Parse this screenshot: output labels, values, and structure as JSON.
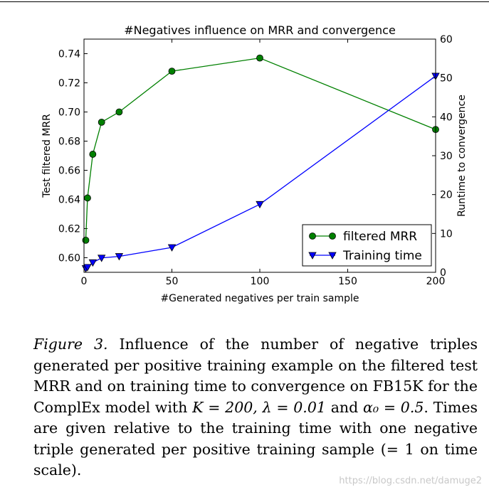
{
  "chart_data": {
    "type": "line",
    "title": "#Negatives influence on MRR and convergence",
    "xlabel": "#Generated negatives per train sample",
    "ylabel_left": "Test filtered MRR",
    "ylabel_right": "Runtime to convergence",
    "xlim": [
      0,
      200
    ],
    "ylim_left": [
      0.59,
      0.75
    ],
    "ylim_right": [
      0,
      60
    ],
    "x_ticks": [
      0,
      50,
      100,
      150,
      200
    ],
    "y_ticks_left": [
      0.6,
      0.62,
      0.64,
      0.66,
      0.68,
      0.7,
      0.72,
      0.74
    ],
    "y_ticks_right": [
      0,
      10,
      20,
      30,
      40,
      50,
      60
    ],
    "legend_position": "lower-right",
    "series": [
      {
        "name": "filtered MRR",
        "axis": "left",
        "color": "#008000",
        "marker": "circle",
        "x": [
          1,
          2,
          5,
          10,
          20,
          50,
          100,
          200
        ],
        "y": [
          0.612,
          0.641,
          0.671,
          0.693,
          0.7,
          0.728,
          0.737,
          0.688
        ]
      },
      {
        "name": "Training time",
        "axis": "right",
        "color": "#0000ff",
        "marker": "triangle-down",
        "x": [
          1,
          2,
          5,
          10,
          20,
          50,
          100,
          200
        ],
        "y": [
          1,
          1.3,
          2.5,
          3.7,
          4.1,
          6.4,
          17.5,
          50.5
        ]
      }
    ]
  },
  "caption": {
    "label": "Figure 3.",
    "text_1": " Influence of the number of negative triples generated per positive training example on the filtered test MRR and on training time to convergence on FB15K for the ComplEx model with ",
    "math": "K = 200, λ = 0.01",
    "text_2": " and ",
    "math_2": "α₀ = 0.5",
    "text_3": ". Times are given relative to the training time with one negative triple generated per positive training sample (= 1 on time scale)."
  },
  "watermark": "https://blog.csdn.net/damuge2"
}
